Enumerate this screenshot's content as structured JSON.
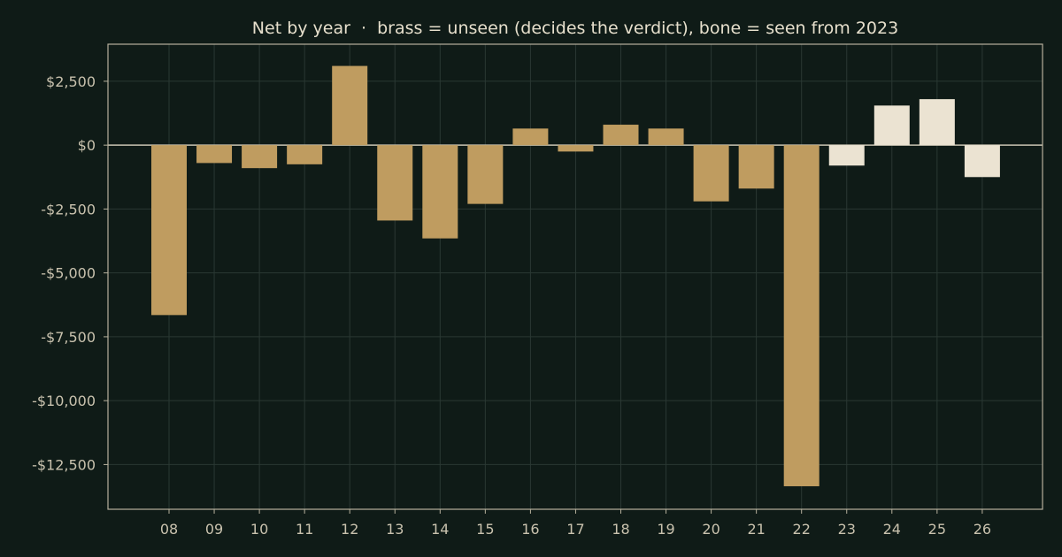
{
  "chart_data": {
    "type": "bar",
    "title": "Net by year  ·  brass = unseen (decides the verdict), bone = seen from 2023",
    "xlabel": "",
    "ylabel": "",
    "categories": [
      "08",
      "09",
      "10",
      "11",
      "12",
      "13",
      "14",
      "15",
      "16",
      "17",
      "18",
      "19",
      "20",
      "21",
      "22",
      "23",
      "24",
      "25",
      "26"
    ],
    "values": [
      -6650,
      -700,
      -900,
      -750,
      3100,
      -2950,
      -3650,
      -2300,
      650,
      -250,
      800,
      650,
      -2200,
      -1700,
      -13350,
      -800,
      1550,
      1800,
      -1250
    ],
    "groups": [
      "unseen",
      "unseen",
      "unseen",
      "unseen",
      "unseen",
      "unseen",
      "unseen",
      "unseen",
      "unseen",
      "unseen",
      "unseen",
      "unseen",
      "unseen",
      "unseen",
      "unseen",
      "seen",
      "seen",
      "seen",
      "seen"
    ],
    "colors": {
      "unseen": "#bf9c60",
      "seen": "#ebe3d2"
    },
    "ylim": [
      -14250,
      3950
    ],
    "yticks": [
      2500,
      0,
      -2500,
      -5000,
      -7500,
      -10000,
      -12500
    ],
    "ytick_labels": [
      "$2,500",
      "$0",
      "-$2,500",
      "-$5,000",
      "-$7,500",
      "-$10,000",
      "-$12,500"
    ],
    "grid": true,
    "legend": "none"
  }
}
